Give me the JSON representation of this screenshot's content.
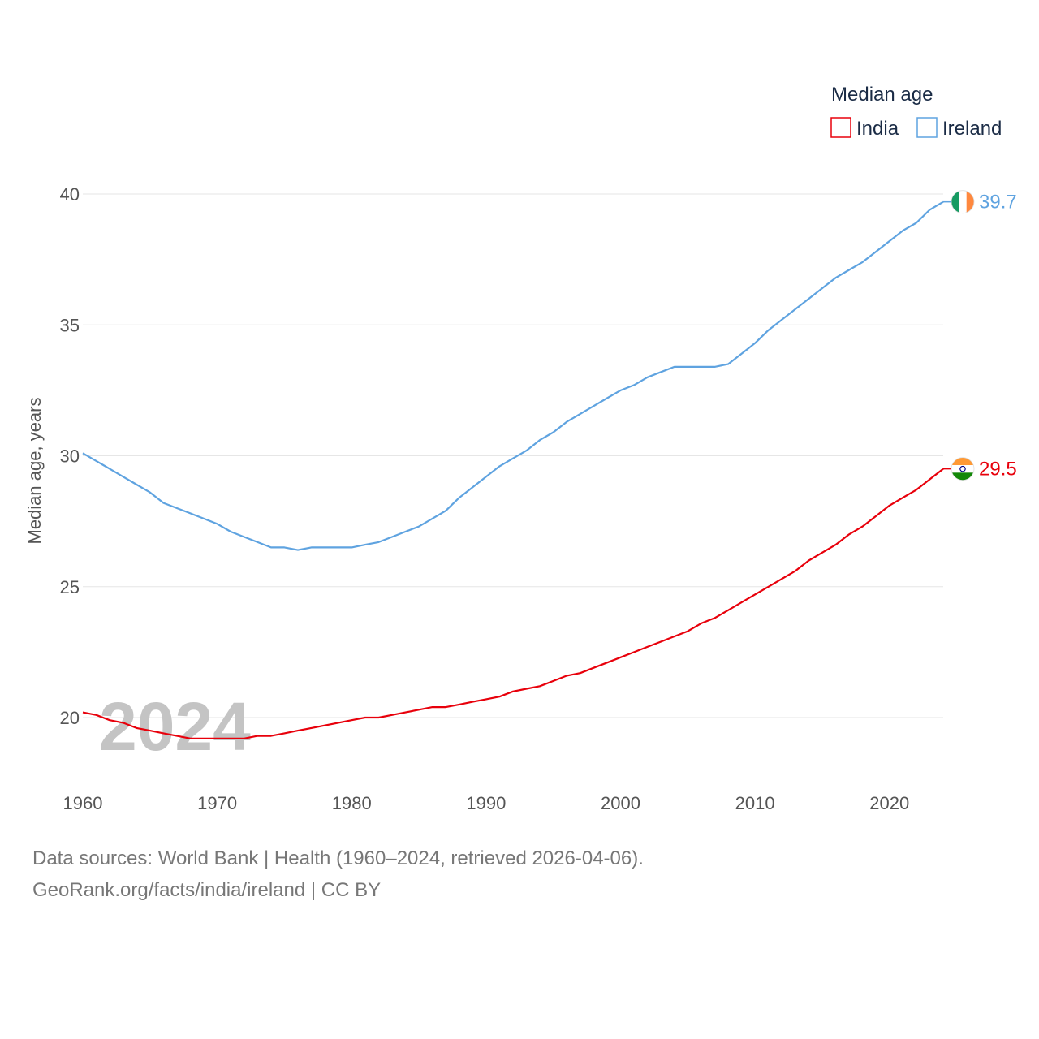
{
  "chart_data": {
    "type": "line",
    "title": "",
    "xlabel": "",
    "ylabel": "Median age, years",
    "xlim": [
      1960,
      2024
    ],
    "ylim": [
      18,
      41
    ],
    "yticks": [
      20,
      25,
      30,
      35,
      40
    ],
    "xticks": [
      1960,
      1970,
      1980,
      1990,
      2000,
      2010,
      2020
    ],
    "legend_title": "Median age",
    "legend_position": "top-right",
    "watermark_year": "2024",
    "x": [
      1960,
      1961,
      1962,
      1963,
      1964,
      1965,
      1966,
      1967,
      1968,
      1969,
      1970,
      1971,
      1972,
      1973,
      1974,
      1975,
      1976,
      1977,
      1978,
      1979,
      1980,
      1981,
      1982,
      1983,
      1984,
      1985,
      1986,
      1987,
      1988,
      1989,
      1990,
      1991,
      1992,
      1993,
      1994,
      1995,
      1996,
      1997,
      1998,
      1999,
      2000,
      2001,
      2002,
      2003,
      2004,
      2005,
      2006,
      2007,
      2008,
      2009,
      2010,
      2011,
      2012,
      2013,
      2014,
      2015,
      2016,
      2017,
      2018,
      2019,
      2020,
      2021,
      2022,
      2023,
      2024
    ],
    "series": [
      {
        "name": "India",
        "color": "#e8000b",
        "end_label": "29.5",
        "flag": "india-flag",
        "values": [
          20.2,
          20.1,
          19.9,
          19.8,
          19.6,
          19.5,
          19.4,
          19.3,
          19.2,
          19.2,
          19.2,
          19.2,
          19.2,
          19.3,
          19.3,
          19.4,
          19.5,
          19.6,
          19.7,
          19.8,
          19.9,
          20.0,
          20.0,
          20.1,
          20.2,
          20.3,
          20.4,
          20.4,
          20.5,
          20.6,
          20.7,
          20.8,
          21.0,
          21.1,
          21.2,
          21.4,
          21.6,
          21.7,
          21.9,
          22.1,
          22.3,
          22.5,
          22.7,
          22.9,
          23.1,
          23.3,
          23.6,
          23.8,
          24.1,
          24.4,
          24.7,
          25.0,
          25.3,
          25.6,
          26.0,
          26.3,
          26.6,
          27.0,
          27.3,
          27.7,
          28.1,
          28.4,
          28.7,
          29.1,
          29.5
        ]
      },
      {
        "name": "Ireland",
        "color": "#5fa3e0",
        "end_label": "39.7",
        "flag": "ireland-flag",
        "values": [
          30.1,
          29.8,
          29.5,
          29.2,
          28.9,
          28.6,
          28.2,
          28.0,
          27.8,
          27.6,
          27.4,
          27.1,
          26.9,
          26.7,
          26.5,
          26.5,
          26.4,
          26.5,
          26.5,
          26.5,
          26.5,
          26.6,
          26.7,
          26.9,
          27.1,
          27.3,
          27.6,
          27.9,
          28.4,
          28.8,
          29.2,
          29.6,
          29.9,
          30.2,
          30.6,
          30.9,
          31.3,
          31.6,
          31.9,
          32.2,
          32.5,
          32.7,
          33.0,
          33.2,
          33.4,
          33.4,
          33.4,
          33.4,
          33.5,
          33.9,
          34.3,
          34.8,
          35.2,
          35.6,
          36.0,
          36.4,
          36.8,
          37.1,
          37.4,
          37.8,
          38.2,
          38.6,
          38.9,
          39.4,
          39.7
        ]
      }
    ]
  },
  "footer": {
    "line1": "Data sources: World Bank | Health (1960–2024, retrieved 2026-04-06).",
    "line2": "GeoRank.org/facts/india/ireland | CC BY"
  }
}
